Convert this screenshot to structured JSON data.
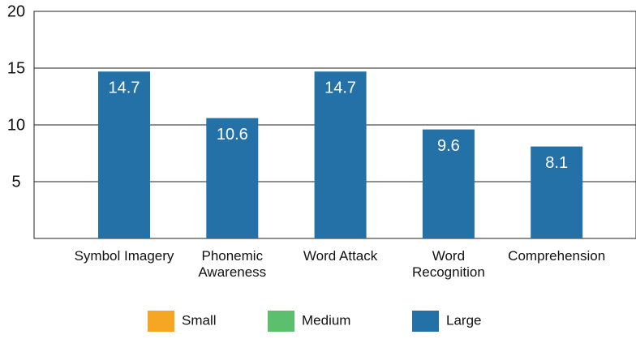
{
  "chart_data": {
    "type": "bar",
    "categories": [
      "Symbol Imagery",
      "Phonemic\nAwareness",
      "Word Attack",
      "Word\nRecognition",
      "Comprehension"
    ],
    "series": [
      {
        "name": "Small",
        "color": "#f5a623",
        "values": [
          null,
          null,
          null,
          null,
          null
        ]
      },
      {
        "name": "Medium",
        "color": "#5cbf6e",
        "values": [
          null,
          null,
          null,
          null,
          null
        ]
      },
      {
        "name": "Large",
        "color": "#2471a8",
        "values": [
          14.7,
          10.6,
          14.7,
          9.6,
          8.1
        ]
      }
    ],
    "ylim": [
      0,
      20
    ],
    "yticks": [
      5,
      10,
      15,
      20
    ],
    "grid": true,
    "legend": "bottom"
  }
}
